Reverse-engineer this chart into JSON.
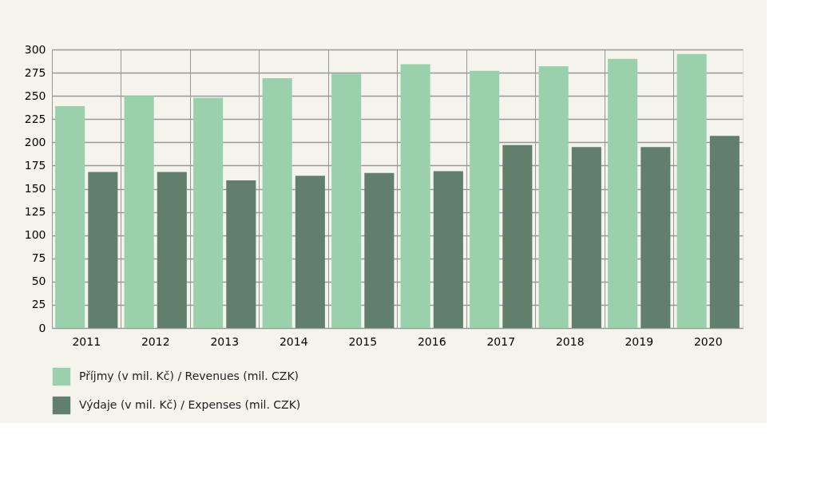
{
  "chart_data": {
    "type": "bar",
    "categories": [
      "2011",
      "2012",
      "2013",
      "2014",
      "2015",
      "2016",
      "2017",
      "2018",
      "2019",
      "2020"
    ],
    "series": [
      {
        "name": "Příjmy (v mil. Kč) / Revenues (mil. CZK)",
        "color": "#9ad1ac",
        "values": [
          239,
          250,
          248,
          269,
          274,
          284,
          277,
          282,
          290,
          295
        ]
      },
      {
        "name": "Výdaje (v mil. Kč) / Expenses (mil. CZK)",
        "color": "#617f6b",
        "values": [
          168,
          168,
          159,
          164,
          167,
          169,
          197,
          195,
          195,
          207
        ]
      }
    ],
    "ylim": [
      0,
      300
    ],
    "yticks": [
      0,
      25,
      50,
      75,
      100,
      125,
      150,
      175,
      200,
      225,
      250,
      275,
      300
    ],
    "grid": true,
    "legend": "bottom left"
  }
}
